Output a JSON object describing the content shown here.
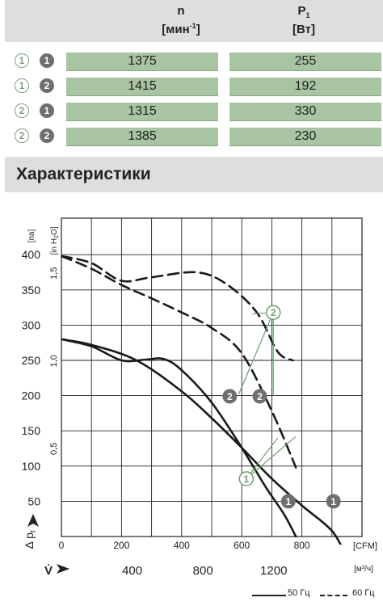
{
  "table": {
    "col_n_main": "n",
    "col_n_unit_pre": "[мин",
    "col_n_unit_sup": "-1",
    "col_n_unit_post": "]",
    "col_p_main": "P",
    "col_p_sub": "1",
    "col_p_unit": "[Вт]",
    "rows": [
      {
        "freq": "1",
        "variant": "1",
        "n": "1375",
        "p": "255"
      },
      {
        "freq": "1",
        "variant": "2",
        "n": "1415",
        "p": "192"
      },
      {
        "freq": "2",
        "variant": "1",
        "n": "1315",
        "p": "330"
      },
      {
        "freq": "2",
        "variant": "2",
        "n": "1385",
        "p": "230"
      }
    ]
  },
  "section": {
    "title": "Характеристики"
  },
  "legend": {
    "solid": "50 Гц",
    "dashed": "60 Гц"
  },
  "chart_data": {
    "type": "line",
    "y_left": {
      "unit": "[па]",
      "label_delta": "Δ",
      "label_p": "p",
      "label_sub": "f",
      "ticks": [
        50,
        100,
        150,
        200,
        250,
        300,
        350,
        400
      ],
      "ylim": [
        0,
        420
      ]
    },
    "y_inh2o": {
      "unit": "[in H2O]",
      "unit_pre": "[in H",
      "unit_sub": "2",
      "unit_post": "O]",
      "ticks": [
        "0,5",
        "1,0",
        "1,5"
      ]
    },
    "x_cfm": {
      "unit": "[CFM]",
      "ticks": [
        "0",
        "200",
        "400",
        "600",
        "800"
      ],
      "xlim": [
        0,
        950
      ]
    },
    "x_m3h": {
      "label": "V̇",
      "unit": "[м³/ч]",
      "ticks": [
        "400",
        "800",
        "1200"
      ]
    },
    "grid": true,
    "series": [
      {
        "freq": "50",
        "variant": "1",
        "style": "solid",
        "points": [
          [
            0,
            280
          ],
          [
            100,
            272
          ],
          [
            250,
            250
          ],
          [
            400,
            206
          ],
          [
            500,
            168
          ],
          [
            600,
            126
          ],
          [
            700,
            82
          ],
          [
            800,
            44
          ],
          [
            900,
            8
          ],
          [
            950,
            -30
          ]
        ]
      },
      {
        "freq": "50",
        "variant": "2",
        "style": "solid",
        "points": [
          [
            0,
            280
          ],
          [
            100,
            270
          ],
          [
            200,
            250
          ],
          [
            280,
            251
          ],
          [
            340,
            252
          ],
          [
            400,
            236
          ],
          [
            500,
            190
          ],
          [
            600,
            126
          ],
          [
            680,
            70
          ],
          [
            740,
            32
          ],
          [
            780,
            0
          ]
        ]
      },
      {
        "freq": "60",
        "variant": "1",
        "style": "dashed",
        "points": [
          [
            0,
            398
          ],
          [
            100,
            380
          ],
          [
            200,
            357
          ],
          [
            300,
            338
          ],
          [
            400,
            318
          ],
          [
            500,
            296
          ],
          [
            600,
            260
          ],
          [
            700,
            178
          ],
          [
            780,
            98
          ]
        ]
      },
      {
        "freq": "60",
        "variant": "2",
        "style": "dashed",
        "points": [
          [
            0,
            398
          ],
          [
            100,
            388
          ],
          [
            200,
            363
          ],
          [
            300,
            368
          ],
          [
            450,
            375
          ],
          [
            550,
            358
          ],
          [
            650,
            318
          ],
          [
            720,
            262
          ],
          [
            770,
            250
          ]
        ]
      }
    ],
    "markers": [
      {
        "text": "2",
        "cfm": 560,
        "pa": 199,
        "kind": "dark"
      },
      {
        "text": "2",
        "cfm": 660,
        "pa": 199,
        "kind": "dark"
      },
      {
        "text": "1",
        "cfm": 755,
        "pa": 50,
        "kind": "dark"
      },
      {
        "text": "1",
        "cfm": 905,
        "pa": 50,
        "kind": "dark"
      },
      {
        "text": "2",
        "cfm": 705,
        "pa": 318,
        "kind": "green",
        "targets": [
          [
            635,
            316
          ],
          [
            705,
            200
          ],
          [
            590,
            202
          ]
        ]
      },
      {
        "text": "1",
        "cfm": 615,
        "pa": 82,
        "kind": "green",
        "targets": [
          [
            720,
            140
          ],
          [
            780,
            142
          ]
        ]
      }
    ]
  }
}
